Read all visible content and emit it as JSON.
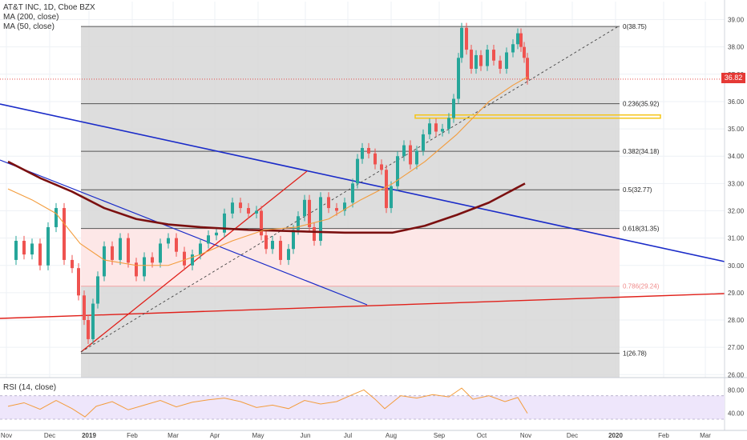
{
  "legend": {
    "title": "AT&T INC, 1D, Cboe BZX",
    "ma200": "MA (200, close)",
    "ma50": "MA (50, close)",
    "rsi": "RSI (14, close)"
  },
  "last_price": "36.82",
  "colors": {
    "fib_band": "#d9d9d9",
    "pink_zone": "#fde7e7",
    "ma50": "#f39c3c",
    "ma200": "#7b1010",
    "blue_lines": "#1a2bc8",
    "red_lines": "#e0201a",
    "resistance_box": "#f5c518",
    "rsi_line": "#f39c3c",
    "rsi_band": "#eee6fb",
    "last_price": "#e53935"
  },
  "chart_data": [
    {
      "type": "candlestick",
      "title": "AT&T INC, 1D, Cboe BZX",
      "x_ticks": [
        "Nov",
        "Dec",
        "2019",
        "Feb",
        "Mar",
        "Apr",
        "May",
        "Jun",
        "Jul",
        "Aug",
        "Sep",
        "Oct",
        "Nov",
        "Dec",
        "2020",
        "Feb",
        "Mar"
      ],
      "y_ticks": [
        "26.00",
        "27.00",
        "28.00",
        "29.00",
        "30.00",
        "31.00",
        "32.00",
        "33.00",
        "34.00",
        "35.00",
        "36.00",
        "37.00",
        "38.00",
        "39.00"
      ],
      "ylim": [
        25.95,
        39.25
      ],
      "fibonacci": [
        {
          "label": "0(38.75)",
          "value": 38.75
        },
        {
          "label": "0.236(35.92)",
          "value": 35.92
        },
        {
          "label": "0.382(34.18)",
          "value": 34.18
        },
        {
          "label": "0.5(32.77)",
          "value": 32.77
        },
        {
          "label": "0.618(31.35)",
          "value": 31.35
        },
        {
          "label": "0.786(29.24)",
          "value": 29.24
        },
        {
          "label": "1(26.78)",
          "value": 26.78
        }
      ],
      "price_series": [
        {
          "x": 0,
          "y": 30.2
        },
        {
          "x": 10,
          "y": 30.9
        },
        {
          "x": 20,
          "y": 30.4
        },
        {
          "x": 30,
          "y": 30.8
        },
        {
          "x": 40,
          "y": 30.0
        },
        {
          "x": 50,
          "y": 31.4
        },
        {
          "x": 60,
          "y": 32.1
        },
        {
          "x": 70,
          "y": 30.2
        },
        {
          "x": 80,
          "y": 29.9
        },
        {
          "x": 88,
          "y": 28.9
        },
        {
          "x": 95,
          "y": 28.0
        },
        {
          "x": 100,
          "y": 27.3
        },
        {
          "x": 106,
          "y": 28.6
        },
        {
          "x": 112,
          "y": 29.6
        },
        {
          "x": 120,
          "y": 30.7
        },
        {
          "x": 130,
          "y": 30.2
        },
        {
          "x": 140,
          "y": 31.0
        },
        {
          "x": 150,
          "y": 30.1
        },
        {
          "x": 160,
          "y": 29.6
        },
        {
          "x": 170,
          "y": 30.3
        },
        {
          "x": 180,
          "y": 30.1
        },
        {
          "x": 190,
          "y": 30.8
        },
        {
          "x": 200,
          "y": 31.0
        },
        {
          "x": 210,
          "y": 30.5
        },
        {
          "x": 220,
          "y": 30.0
        },
        {
          "x": 230,
          "y": 30.4
        },
        {
          "x": 240,
          "y": 30.8
        },
        {
          "x": 250,
          "y": 31.1
        },
        {
          "x": 260,
          "y": 31.2
        },
        {
          "x": 270,
          "y": 31.9
        },
        {
          "x": 280,
          "y": 32.3
        },
        {
          "x": 290,
          "y": 32.1
        },
        {
          "x": 300,
          "y": 31.9
        },
        {
          "x": 310,
          "y": 32.0
        },
        {
          "x": 316,
          "y": 31.1
        },
        {
          "x": 322,
          "y": 30.6
        },
        {
          "x": 330,
          "y": 30.9
        },
        {
          "x": 340,
          "y": 30.2
        },
        {
          "x": 350,
          "y": 30.6
        },
        {
          "x": 356,
          "y": 31.3
        },
        {
          "x": 362,
          "y": 31.8
        },
        {
          "x": 370,
          "y": 32.4
        },
        {
          "x": 376,
          "y": 31.4
        },
        {
          "x": 382,
          "y": 30.9
        },
        {
          "x": 390,
          "y": 32.5
        },
        {
          "x": 400,
          "y": 32.1
        },
        {
          "x": 410,
          "y": 32.0
        },
        {
          "x": 420,
          "y": 32.3
        },
        {
          "x": 430,
          "y": 33.0
        },
        {
          "x": 436,
          "y": 33.9
        },
        {
          "x": 442,
          "y": 34.3
        },
        {
          "x": 450,
          "y": 34.1
        },
        {
          "x": 458,
          "y": 33.7
        },
        {
          "x": 466,
          "y": 33.5
        },
        {
          "x": 472,
          "y": 32.1
        },
        {
          "x": 478,
          "y": 32.9
        },
        {
          "x": 486,
          "y": 34.0
        },
        {
          "x": 494,
          "y": 34.4
        },
        {
          "x": 502,
          "y": 33.7
        },
        {
          "x": 510,
          "y": 34.2
        },
        {
          "x": 518,
          "y": 34.8
        },
        {
          "x": 526,
          "y": 35.2
        },
        {
          "x": 534,
          "y": 34.9
        },
        {
          "x": 542,
          "y": 35.0
        },
        {
          "x": 550,
          "y": 35.4
        },
        {
          "x": 556,
          "y": 36.1
        },
        {
          "x": 562,
          "y": 37.6
        },
        {
          "x": 566,
          "y": 38.7
        },
        {
          "x": 572,
          "y": 37.9
        },
        {
          "x": 578,
          "y": 37.2
        },
        {
          "x": 584,
          "y": 37.7
        },
        {
          "x": 590,
          "y": 37.3
        },
        {
          "x": 598,
          "y": 37.9
        },
        {
          "x": 606,
          "y": 37.5
        },
        {
          "x": 614,
          "y": 37.2
        },
        {
          "x": 622,
          "y": 37.8
        },
        {
          "x": 630,
          "y": 38.1
        },
        {
          "x": 636,
          "y": 38.5
        },
        {
          "x": 640,
          "y": 38.0
        },
        {
          "x": 644,
          "y": 37.6
        },
        {
          "x": 648,
          "y": 36.8
        }
      ],
      "ma50": [
        {
          "x": 0,
          "y": 32.8
        },
        {
          "x": 30,
          "y": 32.4
        },
        {
          "x": 60,
          "y": 31.9
        },
        {
          "x": 90,
          "y": 30.8
        },
        {
          "x": 120,
          "y": 30.2
        },
        {
          "x": 160,
          "y": 30.0
        },
        {
          "x": 200,
          "y": 30.0
        },
        {
          "x": 240,
          "y": 30.4
        },
        {
          "x": 280,
          "y": 30.9
        },
        {
          "x": 320,
          "y": 31.3
        },
        {
          "x": 360,
          "y": 31.4
        },
        {
          "x": 400,
          "y": 31.7
        },
        {
          "x": 440,
          "y": 32.4
        },
        {
          "x": 480,
          "y": 33.0
        },
        {
          "x": 520,
          "y": 33.8
        },
        {
          "x": 560,
          "y": 34.8
        },
        {
          "x": 600,
          "y": 36.0
        },
        {
          "x": 630,
          "y": 36.6
        },
        {
          "x": 648,
          "y": 36.9
        }
      ],
      "ma200": [
        {
          "x": 0,
          "y": 33.8
        },
        {
          "x": 40,
          "y": 33.2
        },
        {
          "x": 80,
          "y": 32.7
        },
        {
          "x": 120,
          "y": 32.1
        },
        {
          "x": 160,
          "y": 31.7
        },
        {
          "x": 200,
          "y": 31.5
        },
        {
          "x": 240,
          "y": 31.4
        },
        {
          "x": 300,
          "y": 31.3
        },
        {
          "x": 360,
          "y": 31.25
        },
        {
          "x": 420,
          "y": 31.2
        },
        {
          "x": 480,
          "y": 31.2
        },
        {
          "x": 520,
          "y": 31.45
        },
        {
          "x": 560,
          "y": 31.85
        },
        {
          "x": 600,
          "y": 32.3
        },
        {
          "x": 645,
          "y": 33.0
        }
      ],
      "rsi_ticks": [
        "40.00",
        "80.00"
      ],
      "rsi": [
        {
          "x": 0,
          "y": 52
        },
        {
          "x": 20,
          "y": 58
        },
        {
          "x": 40,
          "y": 47
        },
        {
          "x": 60,
          "y": 62
        },
        {
          "x": 80,
          "y": 48
        },
        {
          "x": 96,
          "y": 34
        },
        {
          "x": 110,
          "y": 52
        },
        {
          "x": 130,
          "y": 60
        },
        {
          "x": 150,
          "y": 46
        },
        {
          "x": 170,
          "y": 54
        },
        {
          "x": 190,
          "y": 62
        },
        {
          "x": 210,
          "y": 51
        },
        {
          "x": 230,
          "y": 59
        },
        {
          "x": 250,
          "y": 63
        },
        {
          "x": 270,
          "y": 66
        },
        {
          "x": 290,
          "y": 60
        },
        {
          "x": 310,
          "y": 50
        },
        {
          "x": 330,
          "y": 54
        },
        {
          "x": 350,
          "y": 48
        },
        {
          "x": 370,
          "y": 62
        },
        {
          "x": 390,
          "y": 56
        },
        {
          "x": 410,
          "y": 60
        },
        {
          "x": 430,
          "y": 72
        },
        {
          "x": 444,
          "y": 80
        },
        {
          "x": 458,
          "y": 64
        },
        {
          "x": 470,
          "y": 48
        },
        {
          "x": 490,
          "y": 70
        },
        {
          "x": 510,
          "y": 66
        },
        {
          "x": 530,
          "y": 72
        },
        {
          "x": 550,
          "y": 68
        },
        {
          "x": 566,
          "y": 83
        },
        {
          "x": 580,
          "y": 64
        },
        {
          "x": 600,
          "y": 70
        },
        {
          "x": 620,
          "y": 60
        },
        {
          "x": 636,
          "y": 67
        },
        {
          "x": 648,
          "y": 40
        }
      ]
    }
  ]
}
